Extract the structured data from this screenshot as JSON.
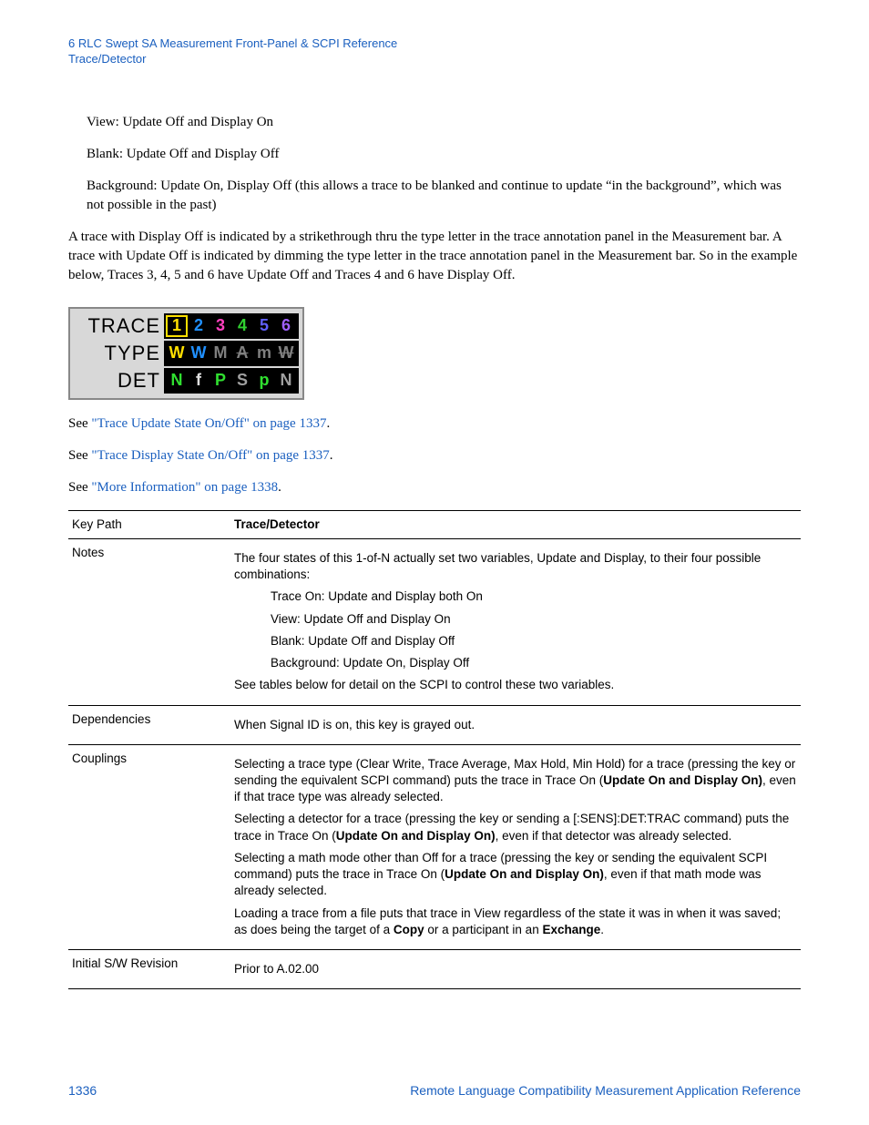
{
  "header": {
    "line1": "6  RLC Swept SA Measurement Front-Panel & SCPI Reference",
    "line2": "Trace/Detector"
  },
  "body": {
    "p1": "View: Update Off and Display On",
    "p2": "Blank: Update Off and Display Off",
    "p3": "Background: Update On, Display Off (this allows a trace to be blanked and continue to update “in the background”, which was not possible in the past)",
    "p4": "A trace with Display Off is indicated by a strikethrough thru the type letter in the trace annotation panel in the Measurement bar.  A trace with Update Off is indicated by dimming the type letter in the trace annotation panel in the Measurement bar.  So in the example below, Traces 3, 4, 5 and 6 have Update Off and Traces 4 and 6 have Display Off.",
    "see1_pre": "See ",
    "see1_link": "\"Trace Update State On/Off\" on page 1337",
    "see2_pre": "See ",
    "see2_link": "\"Trace Display State On/Off\" on page 1337",
    "see3_pre": "See ",
    "see3_link": "\"More Information\" on page 1338",
    "period": "."
  },
  "panel": {
    "labels": {
      "trace": "TRACE",
      "type": "TYPE",
      "det": "DET"
    },
    "trace_row": [
      {
        "t": "1",
        "c": "#ffe000",
        "sel": true
      },
      {
        "t": "2",
        "c": "#2090ff"
      },
      {
        "t": "3",
        "c": "#ff40c0"
      },
      {
        "t": "4",
        "c": "#30d030"
      },
      {
        "t": "5",
        "c": "#6060ff"
      },
      {
        "t": "6",
        "c": "#a060ff"
      }
    ],
    "type_row": [
      {
        "t": "W",
        "c": "#ffe000"
      },
      {
        "t": "W",
        "c": "#2090ff"
      },
      {
        "t": "M",
        "c": "#808080"
      },
      {
        "t": "A",
        "c": "#808080",
        "strike": true
      },
      {
        "t": "m",
        "c": "#808080"
      },
      {
        "t": "W",
        "c": "#808080",
        "strike": true
      }
    ],
    "det_row": [
      {
        "t": "N",
        "c": "#30e030"
      },
      {
        "t": "f",
        "c": "#e0e0e0"
      },
      {
        "t": "P",
        "c": "#30e030"
      },
      {
        "t": "S",
        "c": "#a0a0a0"
      },
      {
        "t": "p",
        "c": "#30e030"
      },
      {
        "t": "N",
        "c": "#a0a0a0"
      }
    ]
  },
  "table": {
    "rows": [
      {
        "k": "Key Path",
        "v_bold": "Trace/Detector"
      },
      {
        "k": "Notes",
        "v": "The four states of this 1-of-N actually set two variables, Update and Display, to their four possible combinations:",
        "subs": [
          "Trace On: Update and Display both On",
          "View: Update Off and Display On",
          "Blank: Update Off and Display Off",
          "Background: Update On, Display Off"
        ],
        "v_after": "See tables below for detail on the SCPI to control these two variables."
      },
      {
        "k": "Dependencies",
        "v": "When Signal ID is on, this key is grayed out."
      },
      {
        "k": "Couplings",
        "paras": [
          {
            "pre": "Selecting a trace type (Clear Write, Trace Average, Max Hold, Min Hold) for a trace (pressing the key or sending the equivalent SCPI command) puts the trace in Trace On (",
            "bold": "Update On and Display On)",
            "post": ", even if that trace type was already selected."
          },
          {
            "pre": "Selecting a detector for a trace (pressing the key or sending a [:SENS]:DET:TRAC command) puts the trace in Trace On (",
            "bold": "Update On and Display On)",
            "post": ", even if that detector was already selected."
          },
          {
            "pre": "Selecting a math mode other than Off for a trace (pressing the key or sending the equivalent SCPI command) puts the trace in Trace On (",
            "bold": "Update On and Display On)",
            "post": ", even if that math mode was already selected."
          },
          {
            "pre": "Loading a trace from a file puts that trace in View regardless of the state it was in when it was saved; as does being the target of a ",
            "bold": "Copy",
            "post": " or a participant in an ",
            "bold2": "Exchange",
            "post2": "."
          }
        ]
      },
      {
        "k": "Initial S/W Revision",
        "v": "Prior to A.02.00"
      }
    ]
  },
  "footer": {
    "page_number": "1336",
    "doc_title": "Remote Language Compatibility Measurement Application Reference"
  }
}
